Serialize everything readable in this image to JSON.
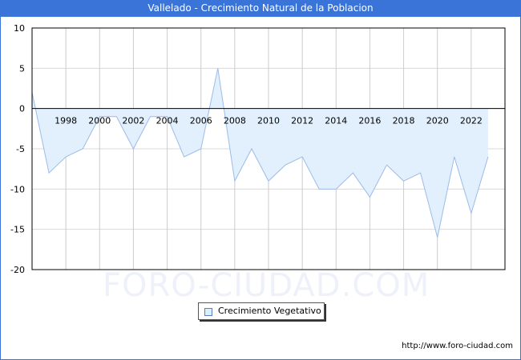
{
  "header": {
    "title": "Vallelado - Crecimiento Natural de la Poblacion"
  },
  "legend": {
    "items": [
      {
        "label": "Crecimiento Vegetativo",
        "color": "#ddeeff",
        "stroke": "#9bbbe8"
      }
    ]
  },
  "footer": {
    "url": "http://www.foro-ciudad.com"
  },
  "watermark": "FORO-CIUDAD.COM",
  "colors": {
    "title_bar": "#3a74d8",
    "area_fill": "#e2f0fd",
    "area_line": "#9bbbe8",
    "grid": "#d8d8d8"
  },
  "chart_data": {
    "type": "area",
    "title": "Vallelado - Crecimiento Natural de la Poblacion",
    "xlabel": "",
    "ylabel": "",
    "x": [
      1996,
      1997,
      1998,
      1999,
      2000,
      2001,
      2002,
      2003,
      2004,
      2005,
      2006,
      2007,
      2008,
      2009,
      2010,
      2011,
      2012,
      2013,
      2014,
      2015,
      2016,
      2017,
      2018,
      2019,
      2020,
      2021,
      2022,
      2023
    ],
    "series": [
      {
        "name": "Crecimiento Vegetativo",
        "values": [
          2,
          -8,
          -6,
          -5,
          -1,
          -1,
          -5,
          -1,
          -1,
          -6,
          -5,
          5,
          -9,
          -5,
          -9,
          -7,
          -6,
          -10,
          -10,
          -8,
          -11,
          -7,
          -9,
          -8,
          -16,
          -6,
          -13,
          -6
        ]
      }
    ],
    "x_tick_labels": [
      "1998",
      "2000",
      "2002",
      "2004",
      "2006",
      "2008",
      "2010",
      "2012",
      "2014",
      "2016",
      "2018",
      "2020",
      "2022"
    ],
    "y_tick_labels": [
      "10",
      "5",
      "0",
      "-5",
      "-10",
      "-15",
      "-20"
    ],
    "ylim": [
      -20,
      10
    ],
    "xlim": [
      1996,
      2024
    ],
    "grid": true,
    "legend_position": "bottom-center"
  }
}
